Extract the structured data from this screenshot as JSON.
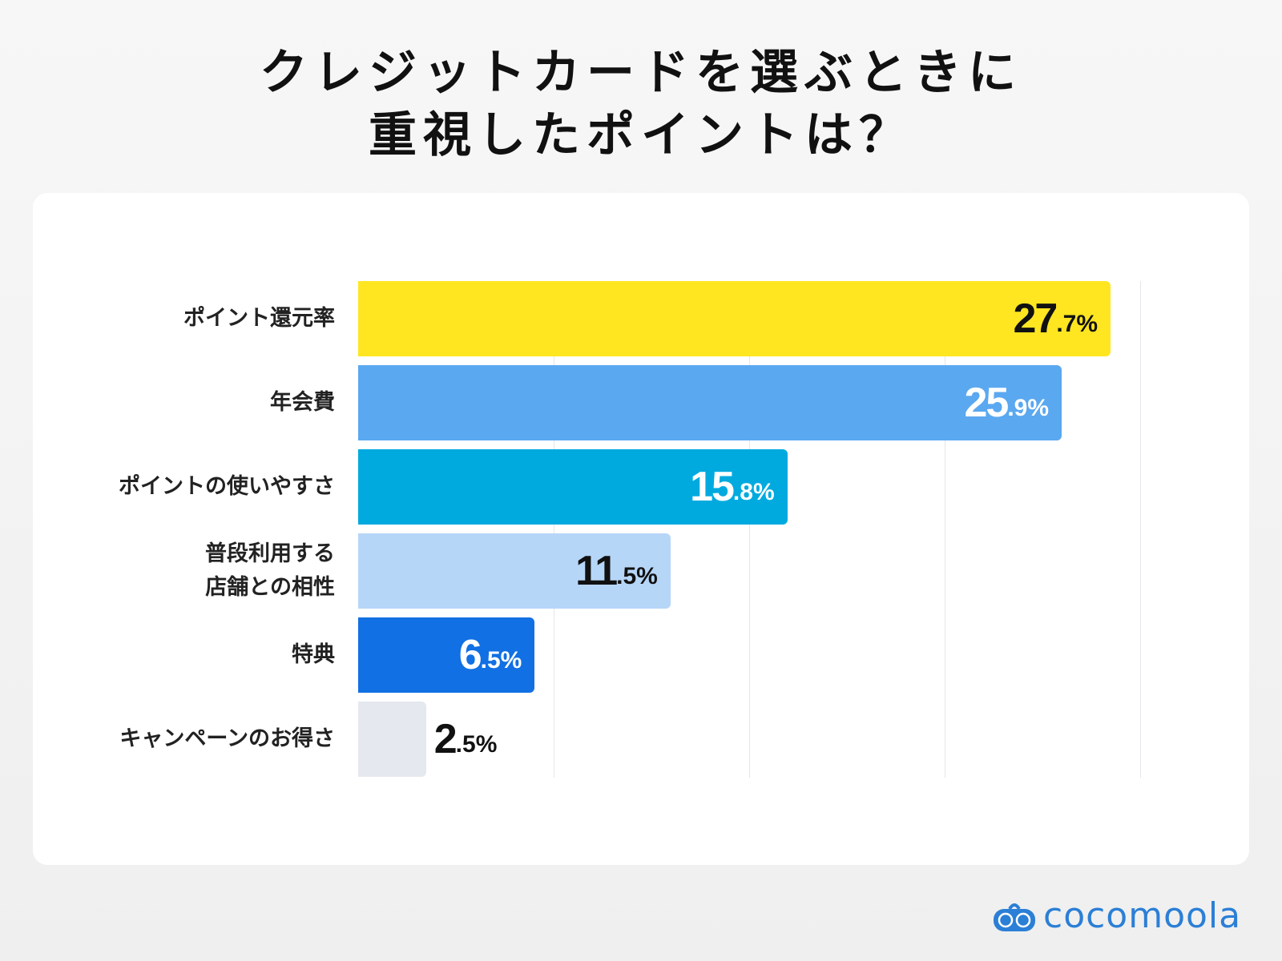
{
  "chart_data": {
    "type": "bar",
    "orientation": "horizontal",
    "title": "クレジットカードを選ぶときに\n重視したポイントは？",
    "categories": [
      "ポイント還元率",
      "年会費",
      "ポイントの使いやすさ",
      "普段利用する\n店舗との相性",
      "特典",
      "キャンペーンのお得さ"
    ],
    "values": [
      27.7,
      25.9,
      15.8,
      11.5,
      6.5,
      2.5
    ],
    "value_labels": [
      {
        "int": "27",
        "dec": ".7%"
      },
      {
        "int": "25",
        "dec": ".9%"
      },
      {
        "int": "15",
        "dec": ".8%"
      },
      {
        "int": "11",
        "dec": ".5%"
      },
      {
        "int": "6",
        "dec": ".5%"
      },
      {
        "int": "2",
        "dec": ".5%"
      }
    ],
    "colors": [
      "#ffe620",
      "#5aa8f0",
      "#00aadf",
      "#b6d6f8",
      "#1170e3",
      "#e5e8ee"
    ],
    "label_colors": [
      "#111111",
      "#ffffff",
      "#ffffff",
      "#111111",
      "#ffffff",
      "#111111"
    ],
    "grid": true,
    "xlabel": "",
    "ylabel": ""
  },
  "title_lines": [
    "クレジットカードを選ぶときに",
    "重視したポイントは？"
  ],
  "logo": {
    "text": "cocomoola",
    "color": "#2b7fd6"
  }
}
